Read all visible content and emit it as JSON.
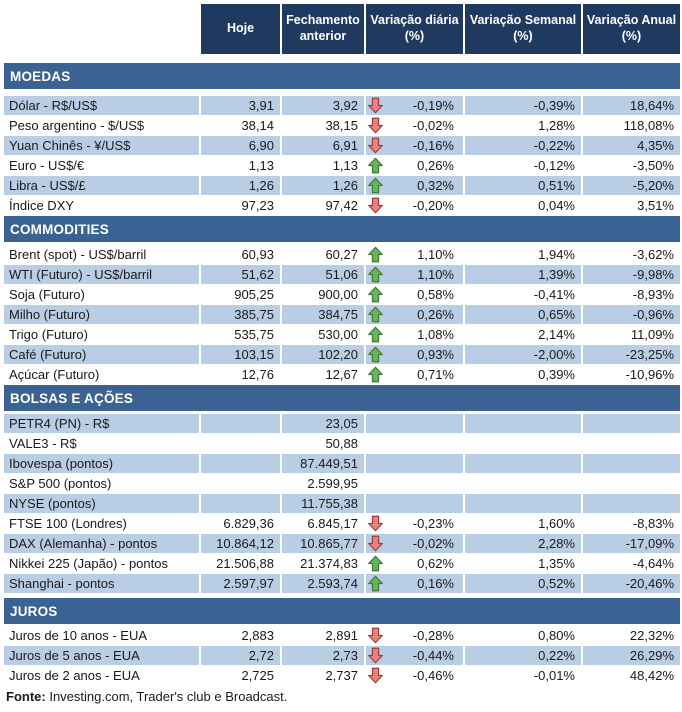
{
  "header": {
    "columns": [
      "Hoje",
      "Fechamento anterior",
      "Variação diária (%)",
      "Variação Semanal (%)",
      "Variação Anual (%)"
    ]
  },
  "colors": {
    "column_header_bg": "#1F3A5E",
    "section_bar_bg": "#3A6394",
    "stripe_bg": "#B9CDE4",
    "header_text": "#FFFFFF",
    "body_text": "#1A1A1A",
    "arrow_up_fill": "#66B35C",
    "arrow_up_stroke": "#3E7A34",
    "arrow_down_fill": "#E8847D",
    "arrow_down_stroke": "#9E3B38"
  },
  "sections": [
    {
      "title": "MOEDAS",
      "zebra_start": 0,
      "rows": [
        {
          "label": "Dólar - R$/US$",
          "hoje": "3,91",
          "fechamento": "3,92",
          "arrow": "down",
          "diaria": "-0,19%",
          "semanal": "-0,39%",
          "anual": "18,64%"
        },
        {
          "label": "Peso argentino - $/US$",
          "hoje": "38,14",
          "fechamento": "38,15",
          "arrow": "down",
          "diaria": "-0,02%",
          "semanal": "1,28%",
          "anual": "118,08%"
        },
        {
          "label": "Yuan Chinês - ¥/US$",
          "hoje": "6,90",
          "fechamento": "6,91",
          "arrow": "down",
          "diaria": "-0,16%",
          "semanal": "-0,22%",
          "anual": "4,35%"
        },
        {
          "label": "Euro - US$/€",
          "hoje": "1,13",
          "fechamento": "1,13",
          "arrow": "up",
          "diaria": "0,26%",
          "semanal": "-0,12%",
          "anual": "-3,50%"
        },
        {
          "label": "Libra - US$/£",
          "hoje": "1,26",
          "fechamento": "1,26",
          "arrow": "up",
          "diaria": "0,32%",
          "semanal": "0,51%",
          "anual": "-5,20%"
        },
        {
          "label": "Índice DXY",
          "hoje": "97,23",
          "fechamento": "97,42",
          "arrow": "down",
          "diaria": "-0,20%",
          "semanal": "0,04%",
          "anual": "3,51%"
        }
      ]
    },
    {
      "title": "COMMODITIES",
      "zebra_start": 1,
      "rows": [
        {
          "label": "Brent (spot) - US$/barril",
          "hoje": "60,93",
          "fechamento": "60,27",
          "arrow": "up",
          "diaria": "1,10%",
          "semanal": "1,94%",
          "anual": "-3,62%"
        },
        {
          "label": "WTI (Futuro) - US$/barril",
          "hoje": "51,62",
          "fechamento": "51,06",
          "arrow": "up",
          "diaria": "1,10%",
          "semanal": "1,39%",
          "anual": "-9,98%"
        },
        {
          "label": "Soja (Futuro)",
          "hoje": "905,25",
          "fechamento": "900,00",
          "arrow": "up",
          "diaria": "0,58%",
          "semanal": "-0,41%",
          "anual": "-8,93%"
        },
        {
          "label": "Milho (Futuro)",
          "hoje": "385,75",
          "fechamento": "384,75",
          "arrow": "up",
          "diaria": "0,26%",
          "semanal": "0,65%",
          "anual": "-0,96%"
        },
        {
          "label": "Trigo (Futuro)",
          "hoje": "535,75",
          "fechamento": "530,00",
          "arrow": "up",
          "diaria": "1,08%",
          "semanal": "2,14%",
          "anual": "11,09%"
        },
        {
          "label": "Café (Futuro)",
          "hoje": "103,15",
          "fechamento": "102,20",
          "arrow": "up",
          "diaria": "0,93%",
          "semanal": "-2,00%",
          "anual": "-23,25%"
        },
        {
          "label": "Açúcar (Futuro)",
          "hoje": "12,76",
          "fechamento": "12,67",
          "arrow": "up",
          "diaria": "0,71%",
          "semanal": "0,39%",
          "anual": "-10,96%"
        }
      ]
    },
    {
      "title": "BOLSAS E AÇÕES",
      "zebra_start": 0,
      "rows": [
        {
          "label": "PETR4 (PN) - R$",
          "hoje": "",
          "fechamento": "23,05",
          "arrow": null,
          "diaria": "",
          "semanal": "",
          "anual": ""
        },
        {
          "label": "VALE3 - R$",
          "hoje": "",
          "fechamento": "50,88",
          "arrow": null,
          "diaria": "",
          "semanal": "",
          "anual": ""
        },
        {
          "label": "Ibovespa (pontos)",
          "hoje": "",
          "fechamento": "87.449,51",
          "arrow": null,
          "diaria": "",
          "semanal": "",
          "anual": ""
        },
        {
          "label": "S&P 500 (pontos)",
          "hoje": "",
          "fechamento": "2.599,95",
          "arrow": null,
          "diaria": "",
          "semanal": "",
          "anual": ""
        },
        {
          "label": "NYSE (pontos)",
          "hoje": "",
          "fechamento": "11.755,38",
          "arrow": null,
          "diaria": "",
          "semanal": "",
          "anual": ""
        },
        {
          "label": "FTSE 100 (Londres)",
          "hoje": "6.829,36",
          "fechamento": "6.845,17",
          "arrow": "down",
          "diaria": "-0,23%",
          "semanal": "1,60%",
          "anual": "-8,83%"
        },
        {
          "label": "DAX (Alemanha) - pontos",
          "hoje": "10.864,12",
          "fechamento": "10.865,77",
          "arrow": "down",
          "diaria": "-0,02%",
          "semanal": "2,28%",
          "anual": "-17,09%"
        },
        {
          "label": "Nikkei 225 (Japão) - pontos",
          "hoje": "21.506,88",
          "fechamento": "21.374,83",
          "arrow": "up",
          "diaria": "0,62%",
          "semanal": "1,35%",
          "anual": "-4,64%"
        },
        {
          "label": "Shanghai - pontos",
          "hoje": "2.597,97",
          "fechamento": "2.593,74",
          "arrow": "up",
          "diaria": "0,16%",
          "semanal": "0,52%",
          "anual": "-20,46%"
        }
      ]
    },
    {
      "title": "JUROS",
      "zebra_start": 1,
      "rows": [
        {
          "label": "Juros de 10 anos - EUA",
          "hoje": "2,883",
          "fechamento": "2,891",
          "arrow": "down",
          "diaria": "-0,28%",
          "semanal": "0,80%",
          "anual": "22,32%"
        },
        {
          "label": "Juros de 5 anos - EUA",
          "hoje": "2,72",
          "fechamento": "2,73",
          "arrow": "down",
          "diaria": "-0,44%",
          "semanal": "0,22%",
          "anual": "26,29%"
        },
        {
          "label": "Juros de 2 anos - EUA",
          "hoje": "2,725",
          "fechamento": "2,737",
          "arrow": "down",
          "diaria": "-0,46%",
          "semanal": "-0,01%",
          "anual": "48,42%"
        }
      ]
    }
  ],
  "footer": {
    "label": "Fonte:",
    "text": " Investing.com, Trader's club e Broadcast."
  }
}
